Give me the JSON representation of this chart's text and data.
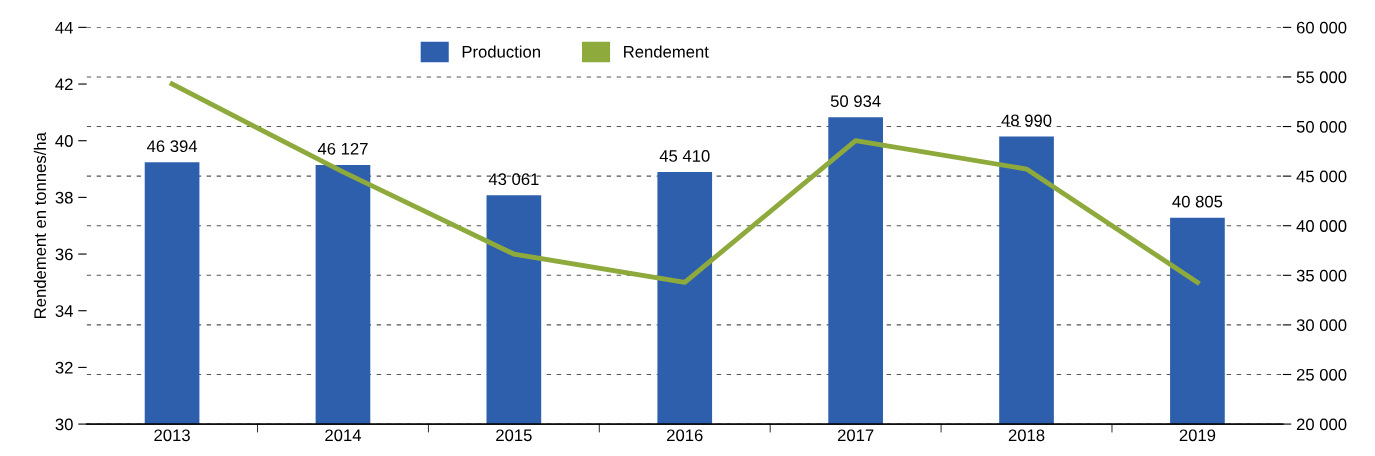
{
  "chart_data": {
    "type": "bar",
    "ylabel": "Rendement en tonnes/ha",
    "categories": [
      "2013",
      "2014",
      "2015",
      "2016",
      "2017",
      "2018",
      "2019"
    ],
    "series": [
      {
        "name": "Production",
        "axis": "y2",
        "color": "#2e5fac",
        "values": [
          46394,
          46127,
          43061,
          45410,
          50934,
          48990,
          40805
        ],
        "value_labels": [
          "46 394",
          "46 127",
          "43 061",
          "45 410",
          "50 934",
          "48 990",
          "40 805"
        ]
      },
      {
        "name": "Rendement",
        "type": "line",
        "axis": "y",
        "color": "#8faa3c",
        "values": [
          42.0,
          38.9,
          36.0,
          35.0,
          40.0,
          39.0,
          35.0
        ]
      }
    ],
    "ylim": [
      30,
      44
    ],
    "yticks": [
      30,
      32,
      34,
      36,
      38,
      40,
      42,
      44
    ],
    "y2lim": [
      20000,
      60000
    ],
    "y2ticks": [
      {
        "value": 20000,
        "label": "20 000"
      },
      {
        "value": 25000,
        "label": "25 000"
      },
      {
        "value": 30000,
        "label": "30 000"
      },
      {
        "value": 35000,
        "label": "35 000"
      },
      {
        "value": 40000,
        "label": "40 000"
      },
      {
        "value": 45000,
        "label": "45 000"
      },
      {
        "value": 50000,
        "label": "50 000"
      },
      {
        "value": 55000,
        "label": "55 000"
      },
      {
        "value": 60000,
        "label": "60 000"
      }
    ],
    "grid": "y",
    "legend": "top",
    "line_style": "solid",
    "marker": "none"
  }
}
